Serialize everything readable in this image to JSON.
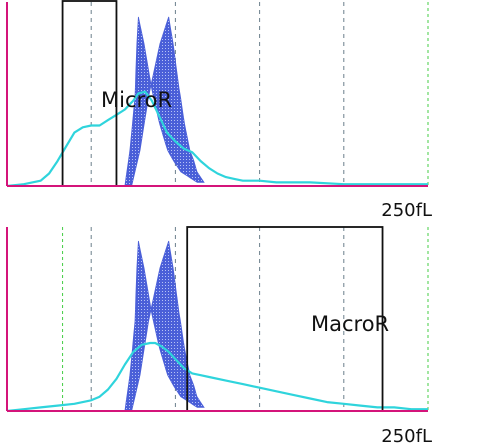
{
  "colors": {
    "axis": "#d4147a",
    "gridline_dashed": "#6b7f8c",
    "gridline_green": "#44cc44",
    "reference_band": "#4a5fd8",
    "reference_band_hatch": "#8ea0ee",
    "measured_curve": "#2fd4dc",
    "region_box": "#111111",
    "text": "#111111"
  },
  "chart_data": [
    {
      "type": "line",
      "x_unit": "fL",
      "x_max_label": "250fL",
      "xlim": [
        0,
        250
      ],
      "ylim": [
        0,
        100
      ],
      "grid": "vertical dashed lines",
      "region_label": "MicroR",
      "region_range": [
        33,
        65
      ],
      "region_height": 100,
      "reference_band": {
        "center": [
          [
            72,
            0
          ],
          [
            76,
            20
          ],
          [
            80,
            50
          ],
          [
            84,
            80
          ],
          [
            87,
            95
          ],
          [
            90,
            80
          ],
          [
            94,
            55
          ],
          [
            98,
            35
          ],
          [
            102,
            20
          ],
          [
            108,
            8
          ],
          [
            115,
            2
          ]
        ],
        "half_width": [
          [
            72,
            2
          ],
          [
            80,
            4
          ],
          [
            87,
            9
          ],
          [
            95,
            8
          ],
          [
            105,
            6
          ],
          [
            115,
            2
          ]
        ]
      },
      "series": [
        {
          "x": [
            0,
            10,
            20,
            25,
            30,
            35,
            40,
            45,
            50,
            55,
            60,
            65,
            70,
            75,
            78,
            82,
            86,
            90,
            95,
            100,
            105,
            110,
            115,
            120,
            125,
            130,
            135,
            140,
            150,
            160,
            180,
            200,
            220,
            240,
            250
          ],
          "y": [
            0,
            1,
            3,
            7,
            14,
            22,
            30,
            33,
            34,
            34,
            37,
            40,
            43,
            48,
            52,
            53,
            48,
            40,
            30,
            25,
            21,
            19,
            14,
            10,
            7,
            5,
            4,
            3,
            3,
            2,
            2,
            1,
            1,
            1,
            1
          ]
        }
      ]
    },
    {
      "type": "line",
      "x_unit": "fL",
      "x_max_label": "250fL",
      "xlim": [
        0,
        250
      ],
      "ylim": [
        0,
        100
      ],
      "grid": "vertical dashed lines",
      "region_label": "MacroR",
      "region_range": [
        107,
        223
      ],
      "region_height": 100,
      "reference_band": {
        "center": [
          [
            72,
            0
          ],
          [
            76,
            20
          ],
          [
            80,
            50
          ],
          [
            84,
            80
          ],
          [
            87,
            95
          ],
          [
            90,
            80
          ],
          [
            94,
            55
          ],
          [
            98,
            35
          ],
          [
            102,
            20
          ],
          [
            108,
            8
          ],
          [
            115,
            2
          ]
        ],
        "half_width": [
          [
            72,
            2
          ],
          [
            80,
            4
          ],
          [
            87,
            9
          ],
          [
            95,
            8
          ],
          [
            105,
            6
          ],
          [
            115,
            2
          ]
        ]
      },
      "series": [
        {
          "x": [
            0,
            10,
            20,
            30,
            40,
            50,
            55,
            60,
            65,
            70,
            75,
            80,
            85,
            88,
            92,
            96,
            100,
            105,
            110,
            115,
            120,
            130,
            140,
            150,
            160,
            170,
            180,
            190,
            200,
            210,
            220,
            230,
            240,
            250
          ],
          "y": [
            0,
            1,
            2,
            3,
            4,
            6,
            8,
            12,
            18,
            26,
            33,
            37,
            38,
            38,
            36,
            33,
            29,
            24,
            21,
            20,
            19,
            17,
            15,
            13,
            11,
            9,
            7,
            5,
            4,
            3,
            2,
            2,
            1,
            1
          ]
        }
      ]
    }
  ]
}
